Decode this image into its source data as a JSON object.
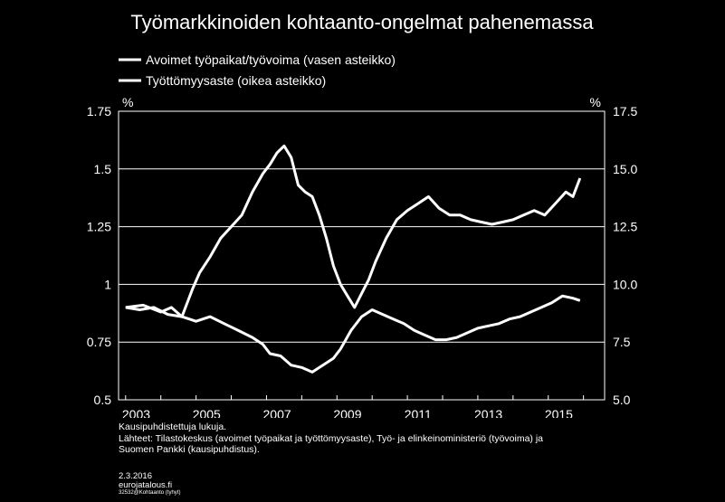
{
  "chart_data": {
    "type": "line",
    "title": "Työmarkkinoiden kohtaanto-ongelmat pahenemassa",
    "left_unit": "%",
    "right_unit": "%",
    "left_ylim": [
      0.5,
      1.75
    ],
    "right_ylim": [
      5.0,
      17.5
    ],
    "left_yticks": [
      "0.5",
      "0.75",
      "1",
      "1.25",
      "1.5",
      "1.75"
    ],
    "right_yticks": [
      "5.0",
      "7.5",
      "10.0",
      "12.5",
      "15.0",
      "17.5"
    ],
    "x_ticklabels": [
      "2003",
      "2005",
      "2007",
      "2009",
      "2011",
      "2013",
      "2015"
    ],
    "grid": true,
    "legend_position": "top-left",
    "series": [
      {
        "name": "Avoimet työpaikat/työvoima (vasen asteikko)",
        "axis": "left",
        "x": [
          2003.0,
          2003.5,
          2004.0,
          2004.3,
          2004.6,
          2004.9,
          2005.1,
          2005.4,
          2005.7,
          2006.0,
          2006.3,
          2006.6,
          2006.9,
          2007.1,
          2007.3,
          2007.5,
          2007.7,
          2007.9,
          2008.1,
          2008.3,
          2008.5,
          2008.7,
          2008.9,
          2009.1,
          2009.3,
          2009.5,
          2009.7,
          2009.9,
          2010.1,
          2010.4,
          2010.7,
          2011.0,
          2011.3,
          2011.6,
          2011.9,
          2012.2,
          2012.5,
          2012.8,
          2013.1,
          2013.4,
          2013.7,
          2014.0,
          2014.3,
          2014.6,
          2014.9,
          2015.2,
          2015.5,
          2015.7,
          2015.9
        ],
        "y": [
          0.9,
          0.91,
          0.88,
          0.9,
          0.86,
          0.98,
          1.05,
          1.12,
          1.2,
          1.25,
          1.3,
          1.4,
          1.48,
          1.52,
          1.57,
          1.6,
          1.55,
          1.43,
          1.4,
          1.38,
          1.3,
          1.2,
          1.08,
          1.0,
          0.95,
          0.9,
          0.96,
          1.02,
          1.1,
          1.2,
          1.28,
          1.32,
          1.35,
          1.38,
          1.33,
          1.3,
          1.3,
          1.28,
          1.27,
          1.26,
          1.27,
          1.28,
          1.3,
          1.32,
          1.3,
          1.35,
          1.4,
          1.38,
          1.46
        ]
      },
      {
        "name": "Työttömyysaste (oikea asteikko)",
        "axis": "right",
        "x": [
          2003.0,
          2003.4,
          2003.8,
          2004.2,
          2004.6,
          2005.0,
          2005.4,
          2005.8,
          2006.2,
          2006.6,
          2006.9,
          2007.1,
          2007.4,
          2007.7,
          2008.0,
          2008.3,
          2008.6,
          2008.9,
          2009.1,
          2009.4,
          2009.7,
          2010.0,
          2010.3,
          2010.6,
          2010.9,
          2011.2,
          2011.5,
          2011.8,
          2012.1,
          2012.4,
          2012.7,
          2013.0,
          2013.3,
          2013.6,
          2013.9,
          2014.2,
          2014.5,
          2014.8,
          2015.1,
          2015.4,
          2015.7,
          2015.9
        ],
        "y": [
          9.0,
          8.9,
          9.0,
          8.7,
          8.6,
          8.4,
          8.6,
          8.3,
          8.0,
          7.7,
          7.4,
          7.0,
          6.9,
          6.5,
          6.4,
          6.2,
          6.5,
          6.8,
          7.2,
          8.0,
          8.6,
          8.9,
          8.7,
          8.5,
          8.3,
          8.0,
          7.8,
          7.6,
          7.6,
          7.7,
          7.9,
          8.1,
          8.2,
          8.3,
          8.5,
          8.6,
          8.8,
          9.0,
          9.2,
          9.5,
          9.4,
          9.3
        ]
      }
    ]
  },
  "footer": {
    "note_line1": "Kausipuhdistettuja lukuja.",
    "note_line2": "Lähteet: Tilastokeskus (avoimet työpaikat ja työttömyysaste), Työ- ja elinkeinoministeriö (työvoima) ja",
    "note_line3": "Suomen Pankki (kausipuhdistus).",
    "date": "2.3.2016",
    "site": "eurojatalous.fi",
    "code": "32532@Kohtaanto (tyhyt)"
  },
  "colors": {
    "background": "#000000",
    "foreground": "#ffffff"
  }
}
